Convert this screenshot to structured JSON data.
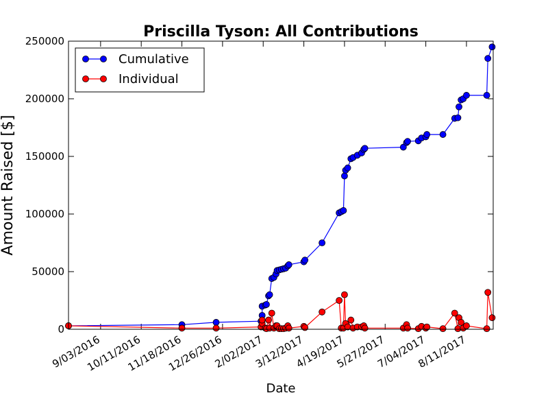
{
  "chart_data": {
    "type": "line",
    "title": "Priscilla Tyson: All Contributions",
    "xlabel": "Date",
    "ylabel": "Amount Raised [$]",
    "x_axis": {
      "type": "date",
      "range": [
        "2016-08-04",
        "2017-09-05"
      ],
      "ticks": [
        {
          "value": "2016-09-03",
          "label": "9/03/2016"
        },
        {
          "value": "2016-10-11",
          "label": "10/11/2016"
        },
        {
          "value": "2016-11-18",
          "label": "11/18/2016"
        },
        {
          "value": "2016-12-26",
          "label": "12/26/2016"
        },
        {
          "value": "2017-02-02",
          "label": "2/02/2017"
        },
        {
          "value": "2017-03-12",
          "label": "3/12/2017"
        },
        {
          "value": "2017-04-19",
          "label": "4/19/2017"
        },
        {
          "value": "2017-05-27",
          "label": "5/27/2017"
        },
        {
          "value": "2017-07-04",
          "label": "7/04/2017"
        },
        {
          "value": "2017-08-11",
          "label": "8/11/2017"
        }
      ]
    },
    "y_axis": {
      "range": [
        0,
        250000
      ],
      "ticks": [
        0,
        50000,
        100000,
        150000,
        200000,
        250000
      ]
    },
    "grid": false,
    "legend": {
      "position": "top-left"
    },
    "series": [
      {
        "name": "Cumulative",
        "color": "#0000ff",
        "points": [
          [
            "2016-08-04",
            3000
          ],
          [
            "2016-11-18",
            4000
          ],
          [
            "2016-12-20",
            6000
          ],
          [
            "2017-01-31",
            7000
          ],
          [
            "2017-02-01",
            12000
          ],
          [
            "2017-02-01",
            20000
          ],
          [
            "2017-02-04",
            21000
          ],
          [
            "2017-02-05",
            21500
          ],
          [
            "2017-02-07",
            29000
          ],
          [
            "2017-02-08",
            30000
          ],
          [
            "2017-02-10",
            44000
          ],
          [
            "2017-02-12",
            45000
          ],
          [
            "2017-02-14",
            48000
          ],
          [
            "2017-02-15",
            51000
          ],
          [
            "2017-02-17",
            51500
          ],
          [
            "2017-02-19",
            52000
          ],
          [
            "2017-02-21",
            52500
          ],
          [
            "2017-02-23",
            53000
          ],
          [
            "2017-02-25",
            55000
          ],
          [
            "2017-02-26",
            56000
          ],
          [
            "2017-03-12",
            58500
          ],
          [
            "2017-03-13",
            60000
          ],
          [
            "2017-03-29",
            75000
          ],
          [
            "2017-04-14",
            101000
          ],
          [
            "2017-04-16",
            102000
          ],
          [
            "2017-04-18",
            103000
          ],
          [
            "2017-04-19",
            133000
          ],
          [
            "2017-04-20",
            138000
          ],
          [
            "2017-04-22",
            140000
          ],
          [
            "2017-04-25",
            148000
          ],
          [
            "2017-04-27",
            149000
          ],
          [
            "2017-05-01",
            151000
          ],
          [
            "2017-05-05",
            153000
          ],
          [
            "2017-05-07",
            156000
          ],
          [
            "2017-05-08",
            157000
          ],
          [
            "2017-06-13",
            158000
          ],
          [
            "2017-06-16",
            162000
          ],
          [
            "2017-06-17",
            163000
          ],
          [
            "2017-06-27",
            163500
          ],
          [
            "2017-06-30",
            166000
          ],
          [
            "2017-07-04",
            167000
          ],
          [
            "2017-07-05",
            169000
          ],
          [
            "2017-07-20",
            169000
          ],
          [
            "2017-07-31",
            183000
          ],
          [
            "2017-08-03",
            183500
          ],
          [
            "2017-08-04",
            193000
          ],
          [
            "2017-08-06",
            199000
          ],
          [
            "2017-08-08",
            200000
          ],
          [
            "2017-08-11",
            203000
          ],
          [
            "2017-08-30",
            203000
          ],
          [
            "2017-08-31",
            235000
          ],
          [
            "2017-09-04",
            245000
          ]
        ]
      },
      {
        "name": "Individual",
        "color": "#ff0000",
        "points": [
          [
            "2016-08-04",
            3000
          ],
          [
            "2016-11-18",
            1000
          ],
          [
            "2016-12-20",
            1000
          ],
          [
            "2017-01-31",
            2000
          ],
          [
            "2017-02-01",
            5000
          ],
          [
            "2017-02-01",
            8000
          ],
          [
            "2017-02-04",
            1000
          ],
          [
            "2017-02-05",
            500
          ],
          [
            "2017-02-07",
            8000
          ],
          [
            "2017-02-08",
            1000
          ],
          [
            "2017-02-10",
            14000
          ],
          [
            "2017-02-12",
            1000
          ],
          [
            "2017-02-14",
            3000
          ],
          [
            "2017-02-15",
            3000
          ],
          [
            "2017-02-17",
            500
          ],
          [
            "2017-02-19",
            500
          ],
          [
            "2017-02-21",
            500
          ],
          [
            "2017-02-23",
            1000
          ],
          [
            "2017-02-25",
            3000
          ],
          [
            "2017-02-26",
            1000
          ],
          [
            "2017-03-12",
            2500
          ],
          [
            "2017-03-13",
            1500
          ],
          [
            "2017-03-29",
            15000
          ],
          [
            "2017-04-14",
            25000
          ],
          [
            "2017-04-16",
            1000
          ],
          [
            "2017-04-18",
            1000
          ],
          [
            "2017-04-19",
            30000
          ],
          [
            "2017-04-20",
            5000
          ],
          [
            "2017-04-22",
            2000
          ],
          [
            "2017-04-25",
            8000
          ],
          [
            "2017-04-27",
            1000
          ],
          [
            "2017-05-01",
            2000
          ],
          [
            "2017-05-05",
            2000
          ],
          [
            "2017-05-07",
            3000
          ],
          [
            "2017-05-08",
            1000
          ],
          [
            "2017-06-13",
            1000
          ],
          [
            "2017-06-16",
            4000
          ],
          [
            "2017-06-17",
            1000
          ],
          [
            "2017-06-27",
            500
          ],
          [
            "2017-06-30",
            2500
          ],
          [
            "2017-07-04",
            1000
          ],
          [
            "2017-07-05",
            2000
          ],
          [
            "2017-07-20",
            500
          ],
          [
            "2017-07-31",
            14000
          ],
          [
            "2017-08-03",
            500
          ],
          [
            "2017-08-04",
            10000
          ],
          [
            "2017-08-06",
            6000
          ],
          [
            "2017-08-08",
            1000
          ],
          [
            "2017-08-11",
            3000
          ],
          [
            "2017-08-30",
            500
          ],
          [
            "2017-08-31",
            32000
          ],
          [
            "2017-09-04",
            10000
          ]
        ]
      }
    ]
  }
}
